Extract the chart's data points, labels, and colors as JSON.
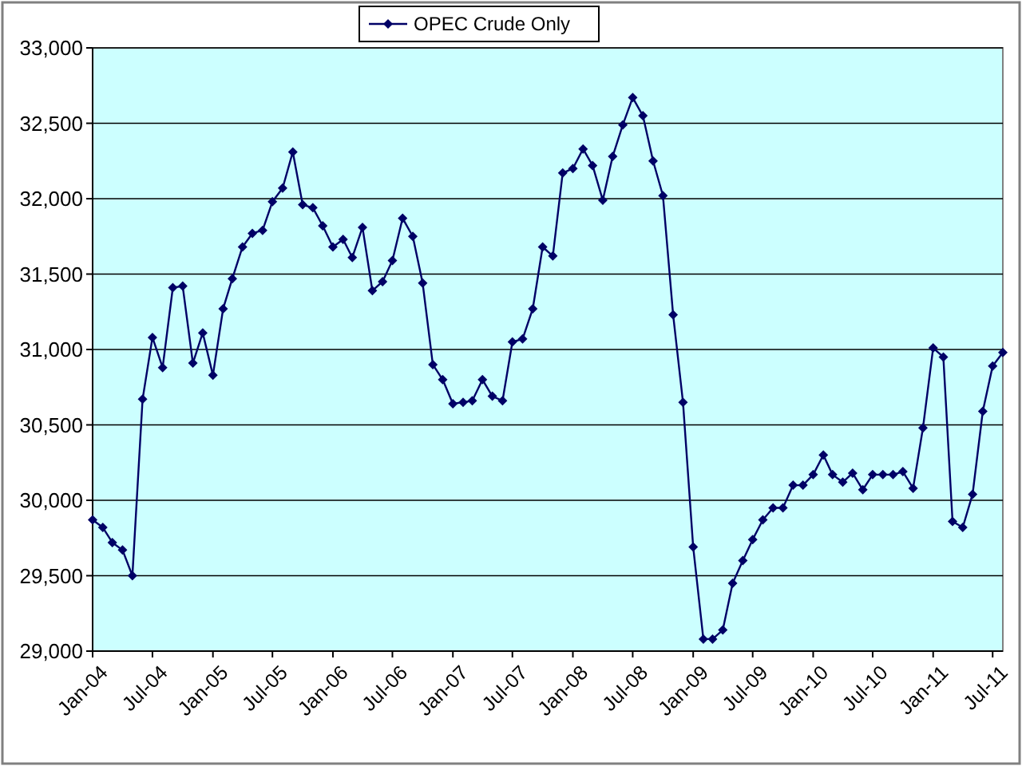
{
  "chart_data": {
    "type": "line",
    "x": [
      "2004-01",
      "2004-02",
      "2004-03",
      "2004-04",
      "2004-05",
      "2004-06",
      "2004-07",
      "2004-08",
      "2004-09",
      "2004-10",
      "2004-11",
      "2004-12",
      "2005-01",
      "2005-02",
      "2005-03",
      "2005-04",
      "2005-05",
      "2005-06",
      "2005-07",
      "2005-08",
      "2005-09",
      "2005-10",
      "2005-11",
      "2005-12",
      "2006-01",
      "2006-02",
      "2006-03",
      "2006-04",
      "2006-05",
      "2006-06",
      "2006-07",
      "2006-08",
      "2006-09",
      "2006-10",
      "2006-11",
      "2006-12",
      "2007-01",
      "2007-02",
      "2007-03",
      "2007-04",
      "2007-05",
      "2007-06",
      "2007-07",
      "2007-08",
      "2007-09",
      "2007-10",
      "2007-11",
      "2007-12",
      "2008-01",
      "2008-02",
      "2008-03",
      "2008-04",
      "2008-05",
      "2008-06",
      "2008-07",
      "2008-08",
      "2008-09",
      "2008-10",
      "2008-11",
      "2008-12",
      "2009-01",
      "2009-02",
      "2009-03",
      "2009-04",
      "2009-05",
      "2009-06",
      "2009-07",
      "2009-08",
      "2009-09",
      "2009-10",
      "2009-11",
      "2009-12",
      "2010-01",
      "2010-02",
      "2010-03",
      "2010-04",
      "2010-05",
      "2010-06",
      "2010-07",
      "2010-08",
      "2010-09",
      "2010-10",
      "2010-11",
      "2010-12",
      "2011-01",
      "2011-02",
      "2011-03",
      "2011-04",
      "2011-05",
      "2011-06",
      "2011-07",
      "2011-08"
    ],
    "series": [
      {
        "name": "OPEC Crude Only",
        "color": "#000066",
        "values": [
          29870,
          29820,
          29720,
          29670,
          29500,
          30670,
          31080,
          30880,
          31410,
          31420,
          30910,
          31110,
          30830,
          31270,
          31470,
          31680,
          31770,
          31790,
          31980,
          32070,
          32310,
          31960,
          31940,
          31820,
          31680,
          31730,
          31610,
          31810,
          31390,
          31450,
          31590,
          31870,
          31750,
          31440,
          30900,
          30800,
          30640,
          30650,
          30660,
          30800,
          30690,
          30660,
          31050,
          31070,
          31270,
          31680,
          31620,
          32170,
          32200,
          32330,
          32220,
          31990,
          32280,
          32490,
          32670,
          32550,
          32250,
          32020,
          31230,
          30650,
          29690,
          29080,
          29080,
          29140,
          29450,
          29600,
          29740,
          29870,
          29950,
          29950,
          30100,
          30100,
          30170,
          30300,
          30170,
          30120,
          30180,
          30070,
          30170,
          30170,
          30170,
          30190,
          30080,
          30480,
          31010,
          30950,
          29860,
          29820,
          30040,
          30590,
          30890,
          30980
        ]
      }
    ],
    "xlim": [
      "2004-01",
      "2011-08"
    ],
    "xticks": [
      {
        "value": "2004-01",
        "label": "Jan-04"
      },
      {
        "value": "2004-07",
        "label": "Jul-04"
      },
      {
        "value": "2005-01",
        "label": "Jan-05"
      },
      {
        "value": "2005-07",
        "label": "Jul-05"
      },
      {
        "value": "2006-01",
        "label": "Jan-06"
      },
      {
        "value": "2006-07",
        "label": "Jul-06"
      },
      {
        "value": "2007-01",
        "label": "Jan-07"
      },
      {
        "value": "2007-07",
        "label": "Jul-07"
      },
      {
        "value": "2008-01",
        "label": "Jan-08"
      },
      {
        "value": "2008-07",
        "label": "Jul-08"
      },
      {
        "value": "2009-01",
        "label": "Jan-09"
      },
      {
        "value": "2009-07",
        "label": "Jul-09"
      },
      {
        "value": "2010-01",
        "label": "Jan-10"
      },
      {
        "value": "2010-07",
        "label": "Jul-10"
      },
      {
        "value": "2011-01",
        "label": "Jan-11"
      },
      {
        "value": "2011-07",
        "label": "Jul-11"
      }
    ],
    "ylim": [
      29000,
      33000
    ],
    "yticks": [
      {
        "value": 29000,
        "label": "29,000"
      },
      {
        "value": 29500,
        "label": "29,500"
      },
      {
        "value": 30000,
        "label": "30,000"
      },
      {
        "value": 30500,
        "label": "30,500"
      },
      {
        "value": 31000,
        "label": "31,000"
      },
      {
        "value": 31500,
        "label": "31,500"
      },
      {
        "value": 32000,
        "label": "32,000"
      },
      {
        "value": 32500,
        "label": "32,500"
      },
      {
        "value": 33000,
        "label": "33,000"
      }
    ],
    "grid": "y",
    "legend": "top",
    "marker": "diamond",
    "line_style": "solid"
  }
}
